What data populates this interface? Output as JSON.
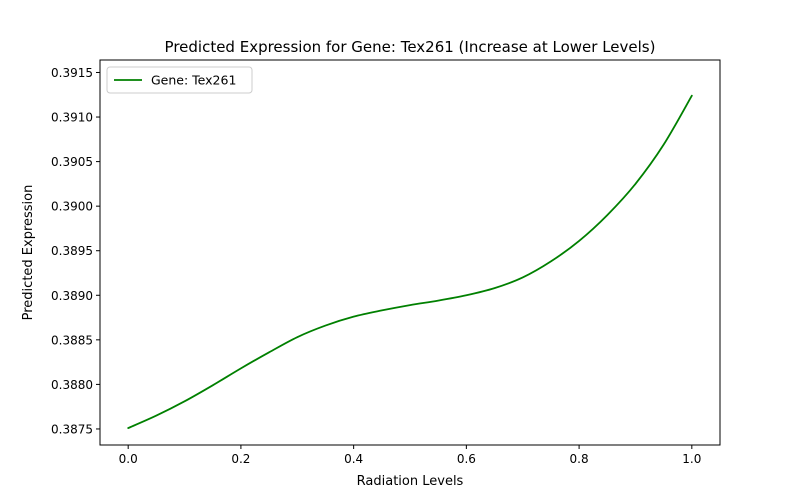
{
  "chart_data": {
    "type": "line",
    "title": "Predicted Expression for Gene: Tex261 (Increase at Lower Levels)",
    "xlabel": "Radiation Levels",
    "ylabel": "Predicted Expression",
    "xlim": [
      -0.05,
      1.05
    ],
    "ylim": [
      0.38732,
      0.39164
    ],
    "x_ticks": [
      0.0,
      0.2,
      0.4,
      0.6,
      0.8,
      1.0
    ],
    "x_tick_labels": [
      "0.0",
      "0.2",
      "0.4",
      "0.6",
      "0.8",
      "1.0"
    ],
    "y_ticks": [
      0.3875,
      0.388,
      0.3885,
      0.389,
      0.3895,
      0.39,
      0.3905,
      0.391,
      0.3915
    ],
    "y_tick_labels": [
      "0.3875",
      "0.3880",
      "0.3885",
      "0.3890",
      "0.3895",
      "0.3900",
      "0.3905",
      "0.3910",
      "0.3915"
    ],
    "grid": false,
    "legend_position": "upper-left",
    "series": [
      {
        "name": "Gene: Tex261",
        "color": "#008000",
        "x": [
          0.0,
          0.05,
          0.1,
          0.15,
          0.2,
          0.25,
          0.3,
          0.35,
          0.4,
          0.45,
          0.5,
          0.55,
          0.6,
          0.65,
          0.7,
          0.75,
          0.8,
          0.85,
          0.9,
          0.95,
          1.0
        ],
        "y": [
          0.38751,
          0.38765,
          0.38781,
          0.38799,
          0.38818,
          0.38836,
          0.38853,
          0.38866,
          0.38876,
          0.38883,
          0.38889,
          0.38894,
          0.389,
          0.38908,
          0.3892,
          0.38938,
          0.38961,
          0.3899,
          0.39025,
          0.39069,
          0.39124
        ]
      }
    ]
  }
}
